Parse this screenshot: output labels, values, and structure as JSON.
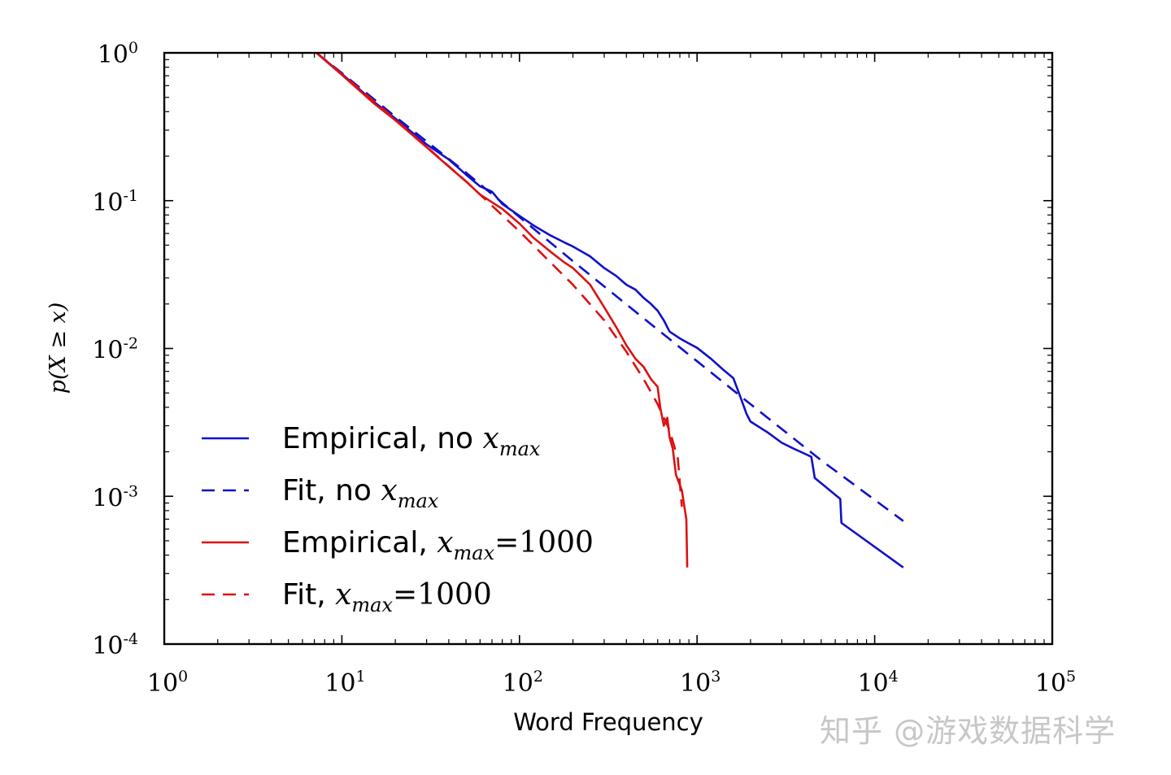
{
  "watermark": "知乎 @游戏数据科学",
  "chart_data": {
    "type": "line",
    "log_scale": {
      "x": true,
      "y": true
    },
    "xlabel": "Word Frequency",
    "ylabel": "p(X ≥ x)",
    "xlim": [
      1,
      100000
    ],
    "ylim": [
      0.0001,
      1
    ],
    "x_ticks": [
      {
        "base": "10",
        "exp": "0"
      },
      {
        "base": "10",
        "exp": "1"
      },
      {
        "base": "10",
        "exp": "2"
      },
      {
        "base": "10",
        "exp": "3"
      },
      {
        "base": "10",
        "exp": "4"
      },
      {
        "base": "10",
        "exp": "5"
      }
    ],
    "y_ticks": [
      {
        "base": "10",
        "exp": "0"
      },
      {
        "base": "10",
        "exp": "-1"
      },
      {
        "base": "10",
        "exp": "-2"
      },
      {
        "base": "10",
        "exp": "-3"
      },
      {
        "base": "10",
        "exp": "-4"
      }
    ],
    "grid": false,
    "legend_position": "bottom-left",
    "series": [
      {
        "name": "Empirical, no x_max",
        "legend": {
          "text": "Empirical, no ",
          "math": "x",
          "sub": "max",
          "suffix": ""
        },
        "color": "#1010cc",
        "style": "solid",
        "points": [
          [
            7.2,
            1
          ],
          [
            10,
            0.72
          ],
          [
            15,
            0.47
          ],
          [
            20,
            0.36
          ],
          [
            30,
            0.24
          ],
          [
            40,
            0.19
          ],
          [
            50,
            0.15
          ],
          [
            60,
            0.125
          ],
          [
            70,
            0.115
          ],
          [
            80,
            0.095
          ],
          [
            100,
            0.079
          ],
          [
            120,
            0.068
          ],
          [
            150,
            0.058
          ],
          [
            180,
            0.052
          ],
          [
            200,
            0.049
          ],
          [
            250,
            0.042
          ],
          [
            300,
            0.035
          ],
          [
            350,
            0.031
          ],
          [
            400,
            0.027
          ],
          [
            450,
            0.025
          ],
          [
            500,
            0.022
          ],
          [
            550,
            0.02
          ],
          [
            600,
            0.018
          ],
          [
            650,
            0.0155
          ],
          [
            700,
            0.013
          ],
          [
            800,
            0.0117
          ],
          [
            900,
            0.0108
          ],
          [
            1000,
            0.0101
          ],
          [
            1200,
            0.0085
          ],
          [
            1400,
            0.0072
          ],
          [
            1600,
            0.0063
          ],
          [
            1700,
            0.0052
          ],
          [
            1900,
            0.0036
          ],
          [
            2000,
            0.0032
          ],
          [
            2500,
            0.0027
          ],
          [
            3000,
            0.0023
          ],
          [
            3500,
            0.0021
          ],
          [
            4000,
            0.00195
          ],
          [
            4400,
            0.00185
          ],
          [
            4600,
            0.00133
          ],
          [
            6400,
            0.00096
          ],
          [
            6500,
            0.00066
          ],
          [
            14500,
            0.00033
          ]
        ]
      },
      {
        "name": "Fit, no x_max",
        "legend": {
          "text": "Fit, no ",
          "math": "x",
          "sub": "max",
          "suffix": ""
        },
        "color": "#1010cc",
        "style": "dashed",
        "points": [
          [
            7.2,
            1
          ],
          [
            10,
            0.73
          ],
          [
            20,
            0.37
          ],
          [
            50,
            0.155
          ],
          [
            100,
            0.0775
          ],
          [
            200,
            0.039
          ],
          [
            500,
            0.016
          ],
          [
            1000,
            0.0082
          ],
          [
            2000,
            0.0042
          ],
          [
            5000,
            0.00175
          ],
          [
            14500,
            0.00068
          ]
        ]
      },
      {
        "name": "Empirical, x_max=1000",
        "legend": {
          "text": "Empirical, ",
          "math": "x",
          "sub": "max",
          "suffix": "=1000"
        },
        "color": "#dd1111",
        "style": "solid",
        "points": [
          [
            7.2,
            1
          ],
          [
            10,
            0.71
          ],
          [
            15,
            0.46
          ],
          [
            20,
            0.35
          ],
          [
            30,
            0.23
          ],
          [
            40,
            0.17
          ],
          [
            50,
            0.135
          ],
          [
            60,
            0.11
          ],
          [
            80,
            0.088
          ],
          [
            100,
            0.07
          ],
          [
            120,
            0.056
          ],
          [
            150,
            0.045
          ],
          [
            180,
            0.038
          ],
          [
            200,
            0.035
          ],
          [
            250,
            0.027
          ],
          [
            300,
            0.019
          ],
          [
            350,
            0.014
          ],
          [
            400,
            0.0105
          ],
          [
            450,
            0.0085
          ],
          [
            500,
            0.0075
          ],
          [
            550,
            0.0062
          ],
          [
            600,
            0.0055
          ],
          [
            620,
            0.004
          ],
          [
            650,
            0.003
          ],
          [
            680,
            0.0034
          ],
          [
            700,
            0.0025
          ],
          [
            730,
            0.0021
          ],
          [
            760,
            0.0014
          ],
          [
            820,
            0.0011
          ],
          [
            870,
            0.0007
          ],
          [
            880,
            0.00033
          ]
        ]
      },
      {
        "name": "Fit, x_max=1000",
        "legend": {
          "text": "Fit, ",
          "math": "x",
          "sub": "max",
          "suffix": "=1000"
        },
        "color": "#dd1111",
        "style": "dashed",
        "points": [
          [
            7.2,
            1
          ],
          [
            10,
            0.72
          ],
          [
            20,
            0.355
          ],
          [
            50,
            0.135
          ],
          [
            100,
            0.062
          ],
          [
            150,
            0.038
          ],
          [
            200,
            0.027
          ],
          [
            300,
            0.0155
          ],
          [
            400,
            0.0095
          ],
          [
            500,
            0.0062
          ],
          [
            600,
            0.0042
          ],
          [
            700,
            0.0028
          ],
          [
            780,
            0.0018
          ],
          [
            820,
            0.00085
          ]
        ]
      }
    ]
  }
}
